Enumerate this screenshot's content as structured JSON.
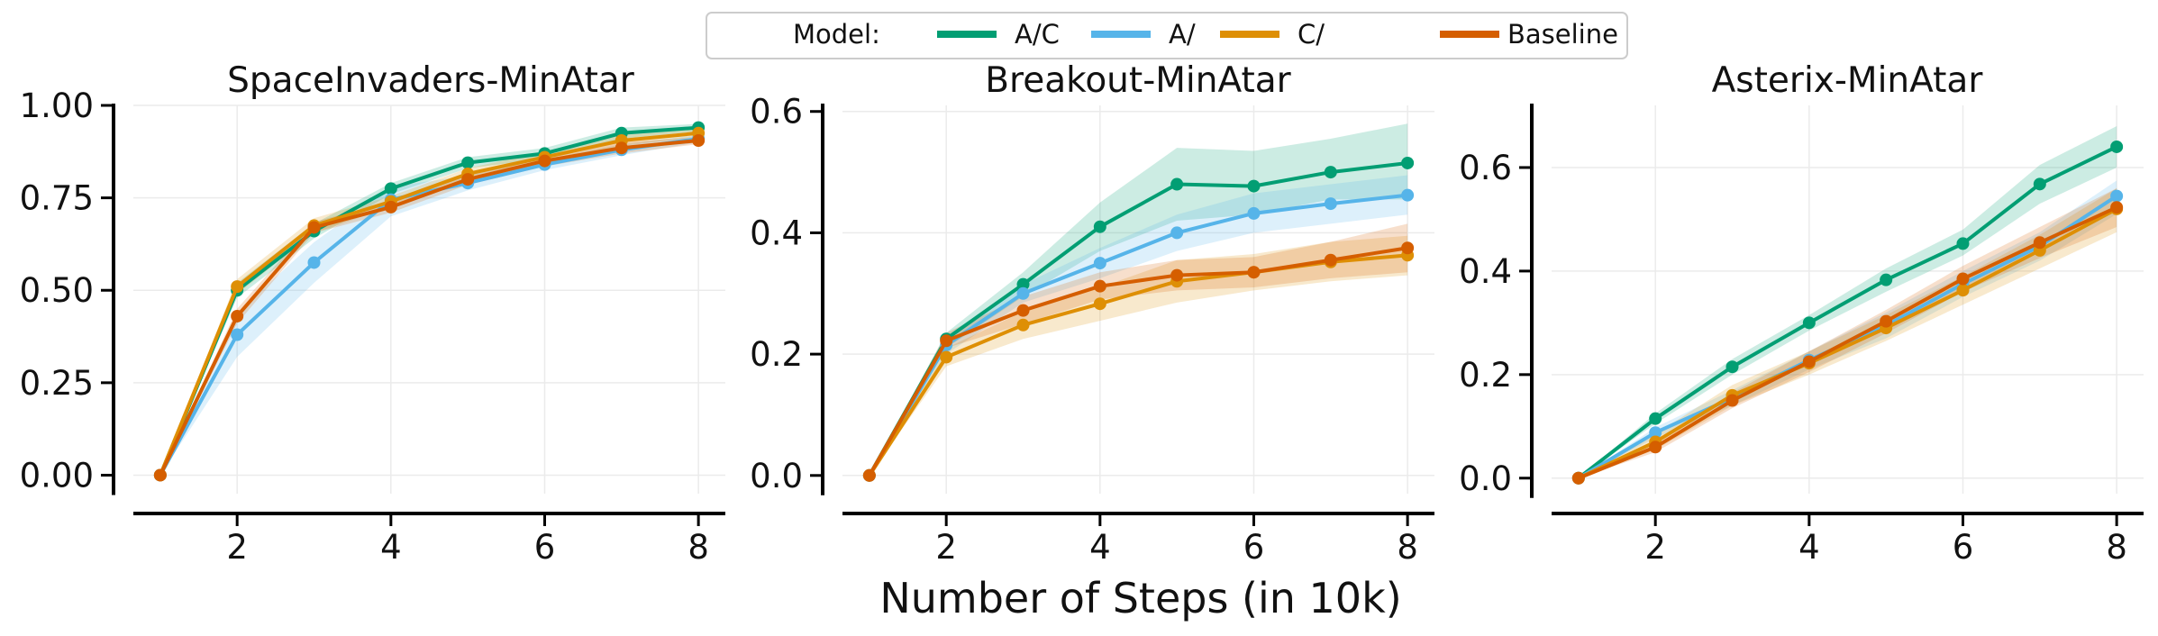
{
  "figure": {
    "xlabel": "Number of Steps (in 10k)",
    "legend": {
      "title": "Model:",
      "placement": "top-center",
      "entries": [
        {
          "label": "A/C",
          "color": "#029e73"
        },
        {
          "label": "A/",
          "color": "#56b4e9"
        },
        {
          "label": "C/",
          "color": "#de8f05"
        },
        {
          "label": "Baseline",
          "color": "#d55e00"
        }
      ]
    }
  },
  "chart_data": [
    {
      "type": "line",
      "title": "SpaceInvaders-MinAtar",
      "xlabel": "",
      "ylabel": "",
      "x": [
        1,
        2,
        3,
        4,
        5,
        6,
        7,
        8
      ],
      "xlim": [
        0.65,
        8.35
      ],
      "ylim": [
        -0.05,
        1.0
      ],
      "xticks": [
        2,
        4,
        6,
        8
      ],
      "xtick_labels": [
        "2",
        "4",
        "6",
        "8"
      ],
      "yticks": [
        0.0,
        0.25,
        0.5,
        0.75,
        1.0
      ],
      "ytick_labels": [
        "0.00",
        "0.25",
        "0.50",
        "0.75",
        "1.00"
      ],
      "grid": true,
      "series": [
        {
          "name": "A/C",
          "color": "#029e73",
          "values": [
            0.0,
            0.5,
            0.66,
            0.775,
            0.845,
            0.87,
            0.925,
            0.94
          ],
          "lower": [
            0.0,
            0.48,
            0.64,
            0.76,
            0.83,
            0.855,
            0.91,
            0.93
          ],
          "upper": [
            0.0,
            0.52,
            0.68,
            0.79,
            0.86,
            0.885,
            0.94,
            0.95
          ]
        },
        {
          "name": "A/",
          "color": "#56b4e9",
          "values": [
            0.0,
            0.38,
            0.575,
            0.745,
            0.79,
            0.84,
            0.88,
            0.91
          ],
          "lower": [
            0.0,
            0.32,
            0.52,
            0.7,
            0.77,
            0.825,
            0.865,
            0.9
          ],
          "upper": [
            0.0,
            0.44,
            0.63,
            0.78,
            0.81,
            0.855,
            0.895,
            0.92
          ]
        },
        {
          "name": "C/",
          "color": "#de8f05",
          "values": [
            0.0,
            0.51,
            0.675,
            0.74,
            0.815,
            0.86,
            0.905,
            0.925
          ],
          "lower": [
            0.0,
            0.49,
            0.655,
            0.725,
            0.8,
            0.845,
            0.89,
            0.915
          ],
          "upper": [
            0.0,
            0.53,
            0.695,
            0.755,
            0.83,
            0.875,
            0.92,
            0.935
          ]
        },
        {
          "name": "Baseline",
          "color": "#d55e00",
          "values": [
            0.0,
            0.43,
            0.67,
            0.725,
            0.8,
            0.85,
            0.885,
            0.905
          ],
          "lower": [
            0.0,
            0.41,
            0.655,
            0.71,
            0.785,
            0.835,
            0.87,
            0.895
          ],
          "upper": [
            0.0,
            0.45,
            0.685,
            0.74,
            0.815,
            0.865,
            0.9,
            0.915
          ]
        }
      ]
    },
    {
      "type": "line",
      "title": "Breakout-MinAtar",
      "xlabel": "",
      "ylabel": "",
      "x": [
        1,
        2,
        3,
        4,
        5,
        6,
        7,
        8
      ],
      "xlim": [
        0.65,
        8.35
      ],
      "ylim": [
        -0.03,
        0.61
      ],
      "xticks": [
        2,
        4,
        6,
        8
      ],
      "xtick_labels": [
        "2",
        "4",
        "6",
        "8"
      ],
      "yticks": [
        0.0,
        0.2,
        0.4,
        0.6
      ],
      "ytick_labels": [
        "0.0",
        "0.2",
        "0.4",
        "0.6"
      ],
      "grid": true,
      "series": [
        {
          "name": "A/C",
          "color": "#029e73",
          "values": [
            0.0,
            0.225,
            0.315,
            0.41,
            0.48,
            0.477,
            0.5,
            0.515
          ],
          "lower": [
            0.0,
            0.21,
            0.295,
            0.37,
            0.42,
            0.43,
            0.455,
            0.455
          ],
          "upper": [
            0.0,
            0.235,
            0.335,
            0.45,
            0.54,
            0.535,
            0.555,
            0.58
          ]
        },
        {
          "name": "A/",
          "color": "#56b4e9",
          "values": [
            0.0,
            0.215,
            0.3,
            0.35,
            0.4,
            0.432,
            0.448,
            0.462
          ],
          "lower": [
            0.0,
            0.2,
            0.285,
            0.325,
            0.37,
            0.4,
            0.415,
            0.43
          ],
          "upper": [
            0.0,
            0.23,
            0.315,
            0.375,
            0.43,
            0.465,
            0.48,
            0.495
          ]
        },
        {
          "name": "C/",
          "color": "#de8f05",
          "values": [
            0.0,
            0.195,
            0.248,
            0.283,
            0.32,
            0.335,
            0.352,
            0.363
          ],
          "lower": [
            0.0,
            0.18,
            0.225,
            0.255,
            0.285,
            0.305,
            0.32,
            0.33
          ],
          "upper": [
            0.0,
            0.21,
            0.27,
            0.31,
            0.355,
            0.365,
            0.385,
            0.395
          ]
        },
        {
          "name": "Baseline",
          "color": "#d55e00",
          "values": [
            0.0,
            0.222,
            0.272,
            0.312,
            0.33,
            0.335,
            0.355,
            0.375
          ],
          "lower": [
            0.0,
            0.21,
            0.25,
            0.29,
            0.305,
            0.31,
            0.325,
            0.335
          ],
          "upper": [
            0.0,
            0.235,
            0.295,
            0.335,
            0.355,
            0.36,
            0.385,
            0.415
          ]
        }
      ]
    },
    {
      "type": "line",
      "title": "Asterix-MinAtar",
      "xlabel": "",
      "ylabel": "",
      "x": [
        1,
        2,
        3,
        4,
        5,
        6,
        7,
        8
      ],
      "xlim": [
        0.65,
        8.35
      ],
      "ylim": [
        -0.03,
        0.72
      ],
      "xticks": [
        2,
        4,
        6,
        8
      ],
      "xtick_labels": [
        "2",
        "4",
        "6",
        "8"
      ],
      "yticks": [
        0.0,
        0.2,
        0.4,
        0.6
      ],
      "ytick_labels": [
        "0.0",
        "0.2",
        "0.4",
        "0.6"
      ],
      "grid": true,
      "series": [
        {
          "name": "A/C",
          "color": "#029e73",
          "values": [
            0.0,
            0.115,
            0.215,
            0.3,
            0.383,
            0.453,
            0.568,
            0.64
          ],
          "lower": [
            0.0,
            0.105,
            0.2,
            0.285,
            0.36,
            0.43,
            0.53,
            0.6
          ],
          "upper": [
            0.0,
            0.125,
            0.23,
            0.315,
            0.405,
            0.48,
            0.605,
            0.68
          ]
        },
        {
          "name": "A/",
          "color": "#56b4e9",
          "values": [
            0.0,
            0.088,
            0.155,
            0.228,
            0.295,
            0.375,
            0.448,
            0.545
          ],
          "lower": [
            0.0,
            0.078,
            0.14,
            0.21,
            0.27,
            0.35,
            0.42,
            0.51
          ],
          "upper": [
            0.0,
            0.098,
            0.17,
            0.245,
            0.32,
            0.4,
            0.475,
            0.575
          ]
        },
        {
          "name": "C/",
          "color": "#de8f05",
          "values": [
            0.0,
            0.07,
            0.16,
            0.222,
            0.29,
            0.363,
            0.44,
            0.52
          ],
          "lower": [
            0.0,
            0.055,
            0.14,
            0.2,
            0.265,
            0.335,
            0.405,
            0.475
          ],
          "upper": [
            0.0,
            0.085,
            0.18,
            0.245,
            0.315,
            0.39,
            0.47,
            0.56
          ]
        },
        {
          "name": "Baseline",
          "color": "#d55e00",
          "values": [
            0.0,
            0.06,
            0.15,
            0.225,
            0.303,
            0.385,
            0.455,
            0.523
          ],
          "lower": [
            0.0,
            0.05,
            0.135,
            0.205,
            0.28,
            0.36,
            0.425,
            0.485
          ],
          "upper": [
            0.0,
            0.07,
            0.165,
            0.245,
            0.325,
            0.41,
            0.485,
            0.56
          ]
        }
      ]
    }
  ]
}
